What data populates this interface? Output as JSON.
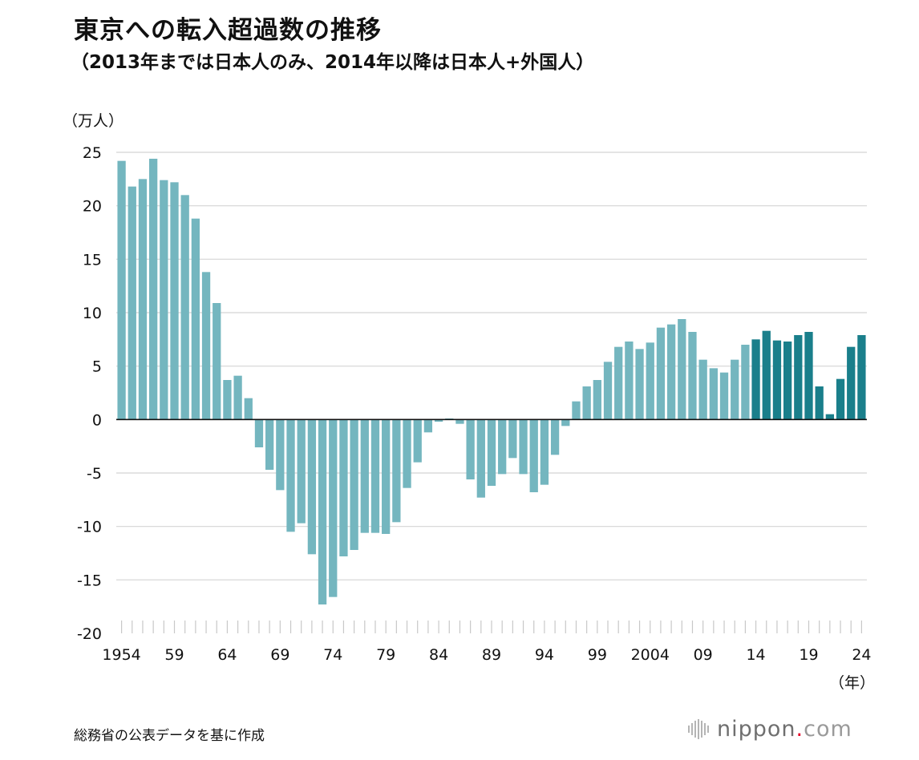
{
  "header": {
    "title": "東京への転入超過数の推移",
    "subtitle": "（2013年までは日本人のみ、2014年以降は日本人+外国人）"
  },
  "footer": {
    "source": "総務省の公表データを基に作成",
    "brand_main": "nippon",
    "brand_dot": ".",
    "brand_com": "com"
  },
  "colors": {
    "japanese_only": "#74b6bf",
    "japanese_and_foreign": "#1a7f8b",
    "gridline": "#d4d4d4",
    "zero_line": "#111111"
  },
  "chart_data": {
    "type": "bar",
    "title": "東京への転入超過数の推移",
    "subtitle": "（2013年までは日本人のみ、2014年以降は日本人+外国人）",
    "ylabel": "（万人）",
    "xlabel": "（年）",
    "ylim": [
      -20,
      25
    ],
    "yticks": [
      25,
      20,
      15,
      10,
      5,
      0,
      -5,
      -10,
      -15,
      -20
    ],
    "grid": true,
    "x_start_year": 1954,
    "xtick_labels": [
      {
        "year": 1954,
        "label": "1954"
      },
      {
        "year": 1959,
        "label": "59"
      },
      {
        "year": 1964,
        "label": "64"
      },
      {
        "year": 1969,
        "label": "69"
      },
      {
        "year": 1974,
        "label": "74"
      },
      {
        "year": 1979,
        "label": "79"
      },
      {
        "year": 1984,
        "label": "84"
      },
      {
        "year": 1989,
        "label": "89"
      },
      {
        "year": 1994,
        "label": "94"
      },
      {
        "year": 1999,
        "label": "99"
      },
      {
        "year": 2004,
        "label": "2004"
      },
      {
        "year": 2009,
        "label": "09"
      },
      {
        "year": 2014,
        "label": "14"
      },
      {
        "year": 2019,
        "label": "19"
      },
      {
        "year": 2024,
        "label": "24"
      }
    ],
    "series": [
      {
        "name": "日本人のみ",
        "years": [
          1954,
          1955,
          1956,
          1957,
          1958,
          1959,
          1960,
          1961,
          1962,
          1963,
          1964,
          1965,
          1966,
          1967,
          1968,
          1969,
          1970,
          1971,
          1972,
          1973,
          1974,
          1975,
          1976,
          1977,
          1978,
          1979,
          1980,
          1981,
          1982,
          1983,
          1984,
          1985,
          1986,
          1987,
          1988,
          1989,
          1990,
          1991,
          1992,
          1993,
          1994,
          1995,
          1996,
          1997,
          1998,
          1999,
          2000,
          2001,
          2002,
          2003,
          2004,
          2005,
          2006,
          2007,
          2008,
          2009,
          2010,
          2011,
          2012,
          2013
        ],
        "values": [
          24.2,
          21.8,
          22.5,
          24.4,
          22.4,
          22.2,
          21.0,
          18.8,
          13.8,
          10.9,
          3.7,
          4.1,
          2.0,
          -2.6,
          -4.7,
          -6.6,
          -10.5,
          -9.7,
          -12.6,
          -17.3,
          -16.6,
          -12.8,
          -12.2,
          -10.6,
          -10.6,
          -10.7,
          -9.6,
          -6.4,
          -4.0,
          -1.2,
          -0.2,
          0.1,
          -0.4,
          -5.6,
          -7.3,
          -6.2,
          -5.1,
          -3.6,
          -5.1,
          -6.8,
          -6.1,
          -3.3,
          -0.6,
          1.7,
          3.1,
          3.7,
          5.4,
          6.8,
          7.3,
          6.6,
          7.2,
          8.6,
          8.9,
          9.4,
          8.2,
          5.6,
          4.8,
          4.4,
          5.6,
          7.0
        ]
      },
      {
        "name": "日本人+外国人",
        "years": [
          2014,
          2015,
          2016,
          2017,
          2018,
          2019,
          2020,
          2021,
          2022,
          2023,
          2024
        ],
        "values": [
          7.5,
          8.3,
          7.4,
          7.3,
          7.9,
          8.2,
          3.1,
          0.5,
          3.8,
          6.8,
          7.9
        ]
      }
    ]
  }
}
